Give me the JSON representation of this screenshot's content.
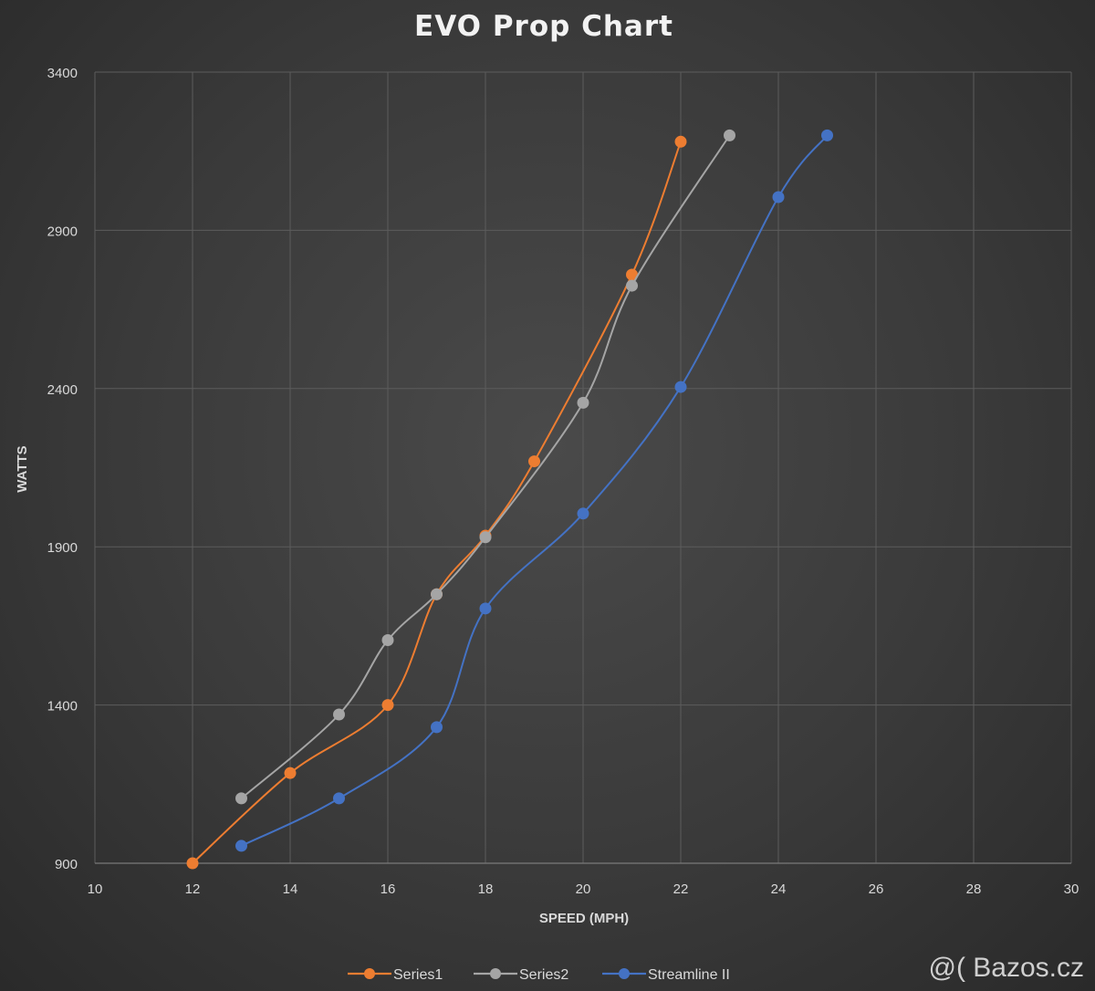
{
  "chart_data": {
    "type": "line",
    "title": "EVO Prop Chart",
    "xlabel": "SPEED (MPH)",
    "ylabel": "WATTS",
    "xlim": [
      10,
      30
    ],
    "ylim": [
      900,
      3400
    ],
    "xticks": [
      10,
      12,
      14,
      16,
      18,
      20,
      22,
      24,
      26,
      28,
      30
    ],
    "yticks": [
      900,
      1400,
      1900,
      2400,
      2900,
      3400
    ],
    "grid": true,
    "legend_position": "bottom-center",
    "series": [
      {
        "name": "Series1",
        "color": "#ed7d31",
        "points": [
          [
            12,
            900
          ],
          [
            14,
            1185
          ],
          [
            16,
            1400
          ],
          [
            17,
            1750
          ],
          [
            18,
            1935
          ],
          [
            19,
            2170
          ],
          [
            21,
            2760
          ],
          [
            22,
            3180
          ]
        ]
      },
      {
        "name": "Series2",
        "color": "#a5a5a5",
        "points": [
          [
            13,
            1105
          ],
          [
            15,
            1370
          ],
          [
            16,
            1605
          ],
          [
            17,
            1750
          ],
          [
            18,
            1930
          ],
          [
            20,
            2355
          ],
          [
            21,
            2725
          ],
          [
            23,
            3200
          ]
        ]
      },
      {
        "name": "Streamline II",
        "color": "#4472c4",
        "points": [
          [
            13,
            955
          ],
          [
            15,
            1105
          ],
          [
            17,
            1330
          ],
          [
            18,
            1705
          ],
          [
            20,
            2005
          ],
          [
            22,
            2405
          ],
          [
            24,
            3005
          ],
          [
            25,
            3200
          ]
        ]
      }
    ]
  },
  "watermark": "@( Bazos.cz"
}
